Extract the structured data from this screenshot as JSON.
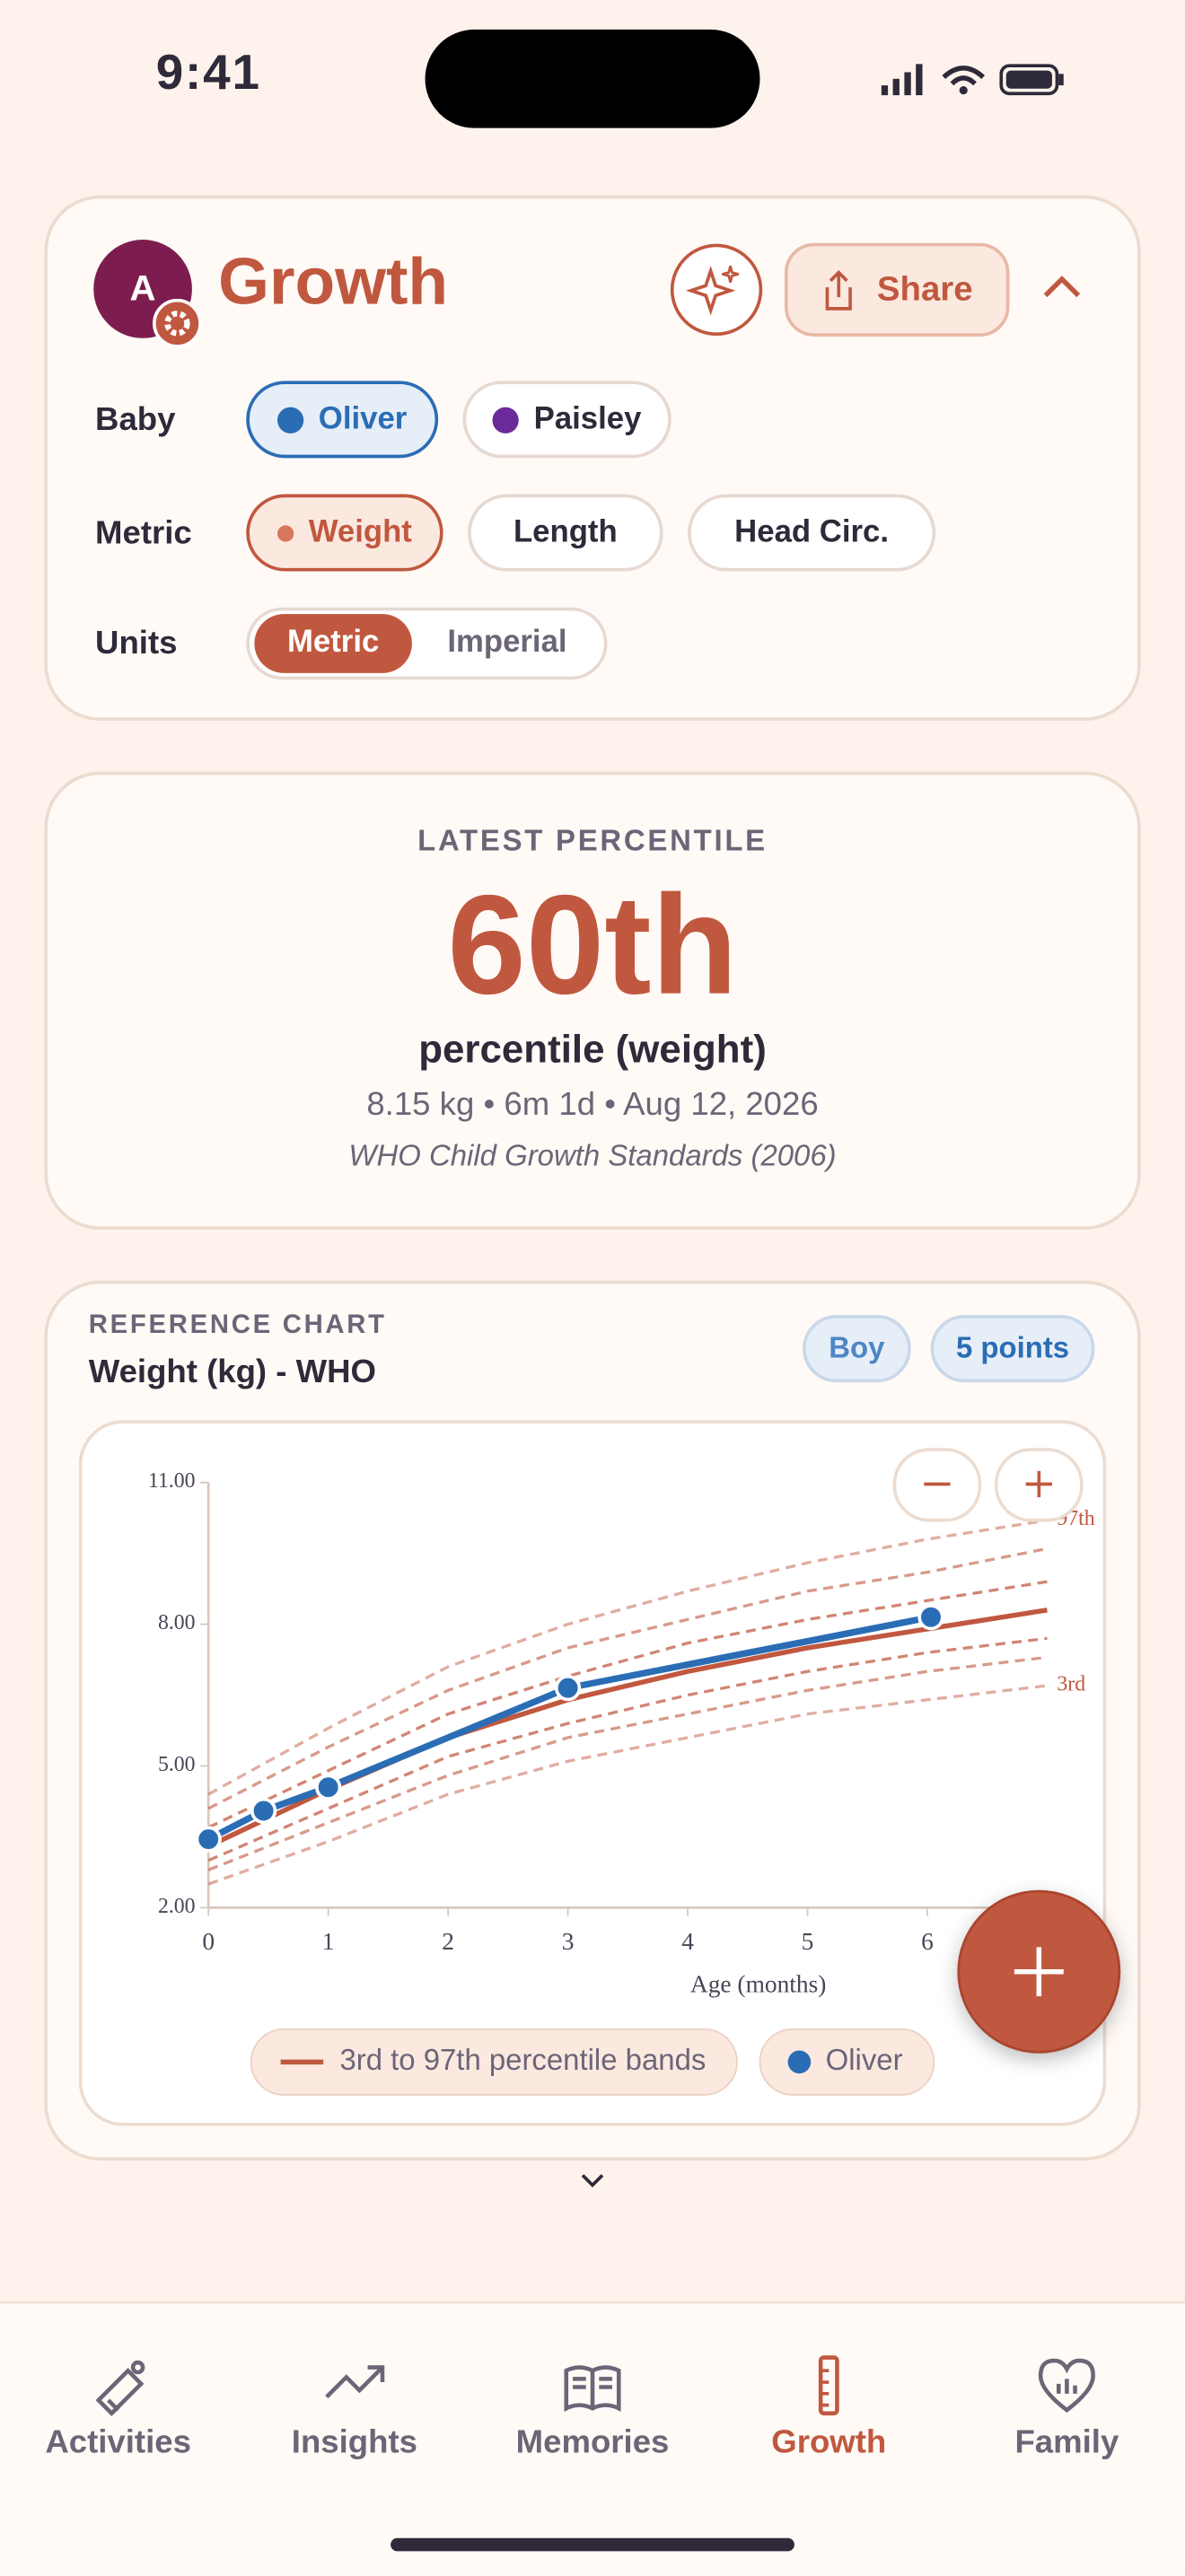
{
  "status_bar": {
    "time": "9:41"
  },
  "header": {
    "avatar": "A",
    "title": "Growth",
    "share": "Share"
  },
  "filters": {
    "baby": {
      "label": "Baby",
      "options": [
        "Oliver",
        "Paisley"
      ]
    },
    "metric": {
      "label": "Metric",
      "options": [
        "Weight",
        "Length",
        "Head Circ."
      ]
    },
    "units": {
      "label": "Units",
      "options": [
        "Metric",
        "Imperial"
      ]
    }
  },
  "summary": {
    "eyebrow": "LATEST PERCENTILE",
    "value": "60th",
    "caption": "percentile (weight)",
    "detail": "8.15 kg • 6m 1d • Aug 12, 2026",
    "source": "WHO Child Growth Standards (2006)"
  },
  "reference": {
    "eyebrow": "REFERENCE CHART",
    "title": "Weight (kg) - WHO",
    "badges": [
      "Boy",
      "5 points"
    ]
  },
  "chart_data": {
    "type": "line",
    "x_label": "Age (months)",
    "xlim": [
      0,
      7
    ],
    "ylim": [
      2,
      11
    ],
    "xticks": [
      0,
      1,
      2,
      3,
      4,
      5,
      6
    ],
    "yticks": [
      {
        "value": 2,
        "label": "2.00"
      },
      {
        "value": 5,
        "label": "5.00"
      },
      {
        "value": 8,
        "label": "8.00"
      },
      {
        "value": 11,
        "label": "11.00"
      }
    ],
    "bands": {
      "name": "3rd to 97th percentile bands",
      "color": "#c0583f",
      "x": [
        0,
        1,
        2,
        3,
        4,
        5,
        6,
        7
      ],
      "curves": [
        {
          "label": "97th",
          "style": "dashed",
          "values": [
            4.4,
            5.8,
            7.1,
            8.0,
            8.7,
            9.3,
            9.8,
            10.2
          ]
        },
        {
          "style": "dashed",
          "values": [
            4.1,
            5.4,
            6.6,
            7.5,
            8.1,
            8.7,
            9.1,
            9.6
          ]
        },
        {
          "style": "dashed",
          "values": [
            3.7,
            4.9,
            6.1,
            6.9,
            7.6,
            8.1,
            8.5,
            8.9
          ]
        },
        {
          "style": "solid",
          "values": [
            3.3,
            4.5,
            5.6,
            6.4,
            7.0,
            7.5,
            7.9,
            8.3
          ]
        },
        {
          "style": "dashed",
          "values": [
            3.0,
            4.1,
            5.2,
            5.9,
            6.5,
            7.0,
            7.4,
            7.7
          ]
        },
        {
          "style": "dashed",
          "values": [
            2.8,
            3.8,
            4.8,
            5.6,
            6.1,
            6.6,
            7.0,
            7.3
          ]
        },
        {
          "label": "3rd",
          "style": "dashed",
          "values": [
            2.5,
            3.4,
            4.4,
            5.1,
            5.6,
            6.1,
            6.4,
            6.7
          ]
        }
      ]
    },
    "series": [
      {
        "name": "Oliver",
        "color": "#2a6db5",
        "x": [
          0,
          0.46,
          1,
          3,
          6.03
        ],
        "values": [
          3.45,
          4.05,
          4.55,
          6.65,
          8.15
        ]
      }
    ]
  },
  "nav": {
    "items": [
      "Activities",
      "Insights",
      "Memories",
      "Growth",
      "Family"
    ],
    "active": 3
  }
}
